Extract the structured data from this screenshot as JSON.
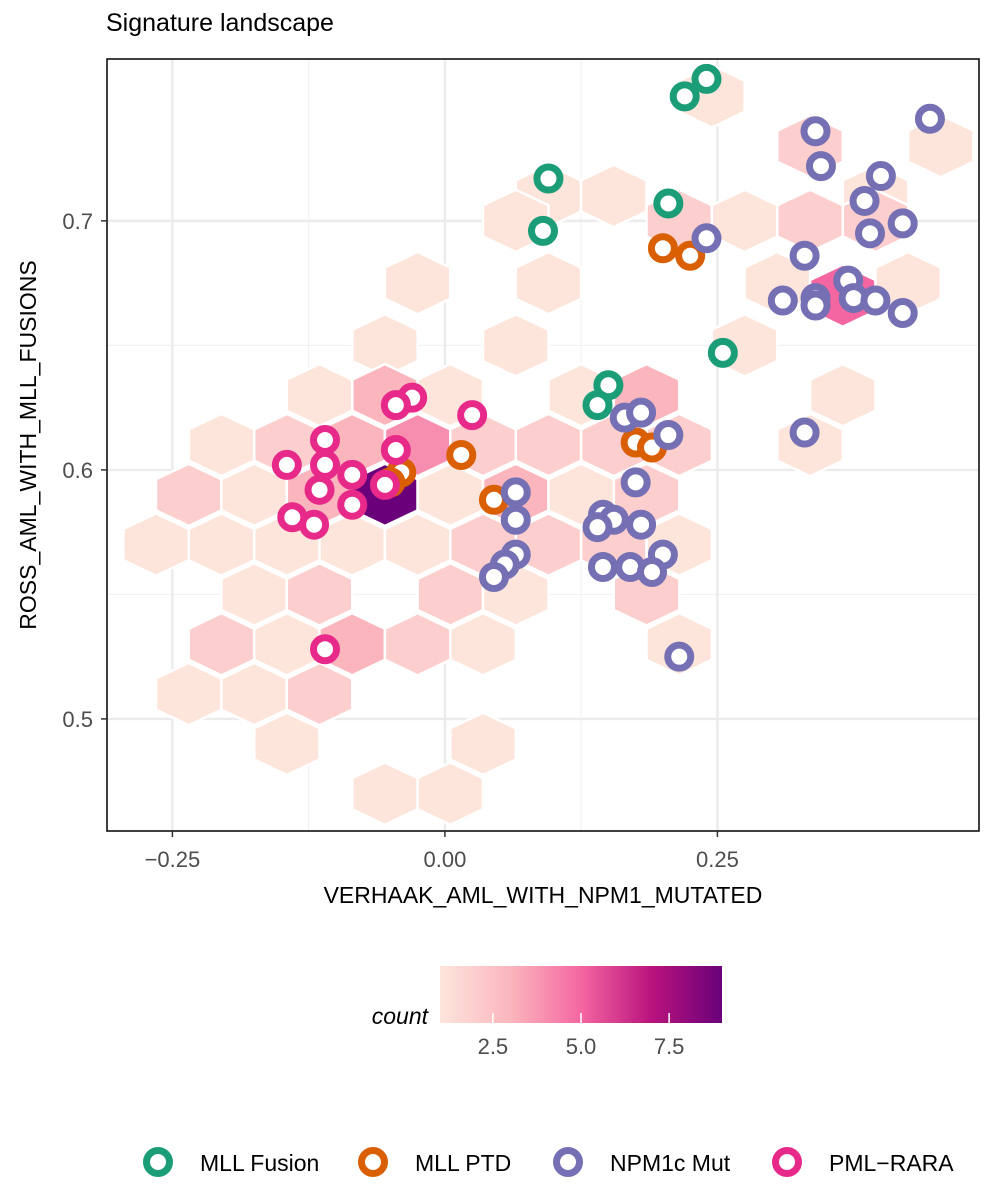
{
  "chart_data": {
    "type": "scatter",
    "title": "Signature landscape",
    "xlabel": "VERHAAK_AML_WITH_NPM1_MUTATED",
    "ylabel": "ROSS_AML_WITH_MLL_FUSIONS",
    "xlim": [
      -0.31,
      0.49
    ],
    "ylim": [
      0.455,
      0.765
    ],
    "x_ticks": [
      -0.25,
      0.0,
      0.25
    ],
    "x_tick_labels": [
      "−0.25",
      "0.00",
      "0.25"
    ],
    "y_ticks": [
      0.5,
      0.6,
      0.7
    ],
    "y_tick_labels": [
      "0.5",
      "0.6",
      "0.7"
    ],
    "grid": true,
    "hexbin": {
      "label": "count",
      "range": [
        1,
        9
      ],
      "colorbar_ticks": [
        2.5,
        5.0,
        7.5
      ],
      "colorbar_tick_labels": [
        "2.5",
        "5.0",
        "7.5"
      ],
      "colors": [
        "#fde5dc",
        "#fbb6bd",
        "#f466a1",
        "#b9137d",
        "#6a017a"
      ],
      "cells": [
        {
          "x": 0.245,
          "y": 0.75,
          "count": 1
        },
        {
          "x": 0.335,
          "y": 0.73,
          "count": 2
        },
        {
          "x": 0.455,
          "y": 0.73,
          "count": 1
        },
        {
          "x": 0.095,
          "y": 0.71,
          "count": 1
        },
        {
          "x": 0.155,
          "y": 0.71,
          "count": 1
        },
        {
          "x": 0.395,
          "y": 0.71,
          "count": 1
        },
        {
          "x": 0.065,
          "y": 0.7,
          "count": 1
        },
        {
          "x": 0.215,
          "y": 0.7,
          "count": 2
        },
        {
          "x": 0.275,
          "y": 0.7,
          "count": 1
        },
        {
          "x": 0.335,
          "y": 0.7,
          "count": 2
        },
        {
          "x": 0.395,
          "y": 0.7,
          "count": 2
        },
        {
          "x": -0.025,
          "y": 0.675,
          "count": 1
        },
        {
          "x": 0.095,
          "y": 0.675,
          "count": 1
        },
        {
          "x": 0.305,
          "y": 0.675,
          "count": 1
        },
        {
          "x": 0.365,
          "y": 0.67,
          "count": 5
        },
        {
          "x": 0.425,
          "y": 0.675,
          "count": 1
        },
        {
          "x": -0.055,
          "y": 0.65,
          "count": 1
        },
        {
          "x": 0.065,
          "y": 0.65,
          "count": 1
        },
        {
          "x": 0.275,
          "y": 0.65,
          "count": 1
        },
        {
          "x": -0.115,
          "y": 0.63,
          "count": 1
        },
        {
          "x": -0.055,
          "y": 0.63,
          "count": 3
        },
        {
          "x": 0.005,
          "y": 0.63,
          "count": 1
        },
        {
          "x": 0.125,
          "y": 0.63,
          "count": 1
        },
        {
          "x": 0.185,
          "y": 0.63,
          "count": 3
        },
        {
          "x": 0.365,
          "y": 0.63,
          "count": 1
        },
        {
          "x": -0.205,
          "y": 0.61,
          "count": 1
        },
        {
          "x": -0.145,
          "y": 0.61,
          "count": 2
        },
        {
          "x": -0.085,
          "y": 0.61,
          "count": 3
        },
        {
          "x": -0.025,
          "y": 0.61,
          "count": 4
        },
        {
          "x": 0.035,
          "y": 0.61,
          "count": 2
        },
        {
          "x": 0.095,
          "y": 0.61,
          "count": 2
        },
        {
          "x": 0.155,
          "y": 0.61,
          "count": 2
        },
        {
          "x": 0.215,
          "y": 0.61,
          "count": 2
        },
        {
          "x": 0.335,
          "y": 0.61,
          "count": 1
        },
        {
          "x": -0.235,
          "y": 0.59,
          "count": 2
        },
        {
          "x": -0.175,
          "y": 0.59,
          "count": 1
        },
        {
          "x": -0.115,
          "y": 0.59,
          "count": 3
        },
        {
          "x": -0.055,
          "y": 0.59,
          "count": 9
        },
        {
          "x": 0.005,
          "y": 0.59,
          "count": 1
        },
        {
          "x": 0.065,
          "y": 0.59,
          "count": 3
        },
        {
          "x": 0.125,
          "y": 0.59,
          "count": 1
        },
        {
          "x": 0.185,
          "y": 0.59,
          "count": 2
        },
        {
          "x": -0.265,
          "y": 0.57,
          "count": 1
        },
        {
          "x": -0.205,
          "y": 0.57,
          "count": 1
        },
        {
          "x": -0.145,
          "y": 0.57,
          "count": 1
        },
        {
          "x": -0.085,
          "y": 0.57,
          "count": 1
        },
        {
          "x": -0.025,
          "y": 0.57,
          "count": 1
        },
        {
          "x": 0.035,
          "y": 0.57,
          "count": 2
        },
        {
          "x": 0.095,
          "y": 0.57,
          "count": 2
        },
        {
          "x": 0.155,
          "y": 0.57,
          "count": 2
        },
        {
          "x": 0.215,
          "y": 0.57,
          "count": 1
        },
        {
          "x": -0.175,
          "y": 0.55,
          "count": 1
        },
        {
          "x": -0.115,
          "y": 0.55,
          "count": 2
        },
        {
          "x": 0.005,
          "y": 0.55,
          "count": 2
        },
        {
          "x": 0.065,
          "y": 0.55,
          "count": 1
        },
        {
          "x": 0.185,
          "y": 0.55,
          "count": 2
        },
        {
          "x": -0.205,
          "y": 0.53,
          "count": 2
        },
        {
          "x": -0.145,
          "y": 0.53,
          "count": 1
        },
        {
          "x": -0.085,
          "y": 0.53,
          "count": 3
        },
        {
          "x": -0.025,
          "y": 0.53,
          "count": 2
        },
        {
          "x": 0.035,
          "y": 0.53,
          "count": 1
        },
        {
          "x": 0.215,
          "y": 0.53,
          "count": 1
        },
        {
          "x": -0.235,
          "y": 0.51,
          "count": 1
        },
        {
          "x": -0.175,
          "y": 0.51,
          "count": 1
        },
        {
          "x": -0.115,
          "y": 0.51,
          "count": 2
        },
        {
          "x": -0.145,
          "y": 0.49,
          "count": 1
        },
        {
          "x": 0.035,
          "y": 0.49,
          "count": 1
        },
        {
          "x": -0.055,
          "y": 0.47,
          "count": 1
        },
        {
          "x": 0.005,
          "y": 0.47,
          "count": 1
        }
      ]
    },
    "series": [
      {
        "name": "MLL Fusion",
        "color": "#1b9e77",
        "points": [
          [
            0.24,
            0.757
          ],
          [
            0.22,
            0.75
          ],
          [
            0.095,
            0.717
          ],
          [
            0.09,
            0.696
          ],
          [
            0.205,
            0.707
          ],
          [
            0.255,
            0.647
          ],
          [
            0.15,
            0.634
          ],
          [
            0.14,
            0.626
          ]
        ]
      },
      {
        "name": "MLL PTD",
        "color": "#d95f02",
        "points": [
          [
            0.2,
            0.689
          ],
          [
            0.225,
            0.686
          ],
          [
            0.015,
            0.606
          ],
          [
            0.175,
            0.611
          ],
          [
            0.19,
            0.609
          ],
          [
            -0.04,
            0.599
          ],
          [
            -0.05,
            0.595
          ],
          [
            0.045,
            0.588
          ]
        ]
      },
      {
        "name": "NPM1c Mut",
        "color": "#7570b3",
        "points": [
          [
            0.445,
            0.741
          ],
          [
            0.34,
            0.736
          ],
          [
            0.345,
            0.722
          ],
          [
            0.4,
            0.718
          ],
          [
            0.385,
            0.708
          ],
          [
            0.42,
            0.699
          ],
          [
            0.39,
            0.695
          ],
          [
            0.24,
            0.693
          ],
          [
            0.33,
            0.686
          ],
          [
            0.37,
            0.676
          ],
          [
            0.375,
            0.669
          ],
          [
            0.395,
            0.668
          ],
          [
            0.31,
            0.668
          ],
          [
            0.34,
            0.669
          ],
          [
            0.34,
            0.666
          ],
          [
            0.42,
            0.663
          ],
          [
            0.33,
            0.615
          ],
          [
            0.165,
            0.621
          ],
          [
            0.18,
            0.623
          ],
          [
            0.205,
            0.614
          ],
          [
            0.175,
            0.595
          ],
          [
            0.065,
            0.591
          ],
          [
            0.065,
            0.58
          ],
          [
            0.145,
            0.582
          ],
          [
            0.155,
            0.58
          ],
          [
            0.14,
            0.577
          ],
          [
            0.18,
            0.578
          ],
          [
            0.065,
            0.566
          ],
          [
            0.055,
            0.562
          ],
          [
            0.045,
            0.557
          ],
          [
            0.2,
            0.566
          ],
          [
            0.145,
            0.561
          ],
          [
            0.17,
            0.561
          ],
          [
            0.19,
            0.559
          ],
          [
            0.215,
            0.525
          ]
        ]
      },
      {
        "name": "PML−RARA",
        "color": "#e7298a",
        "points": [
          [
            -0.03,
            0.629
          ],
          [
            -0.045,
            0.626
          ],
          [
            0.025,
            0.622
          ],
          [
            -0.11,
            0.612
          ],
          [
            -0.045,
            0.608
          ],
          [
            -0.145,
            0.602
          ],
          [
            -0.11,
            0.602
          ],
          [
            -0.085,
            0.598
          ],
          [
            -0.055,
            0.594
          ],
          [
            -0.115,
            0.592
          ],
          [
            -0.085,
            0.586
          ],
          [
            -0.14,
            0.581
          ],
          [
            -0.12,
            0.578
          ],
          [
            -0.11,
            0.528
          ]
        ]
      }
    ],
    "legend_position": "bottom"
  }
}
